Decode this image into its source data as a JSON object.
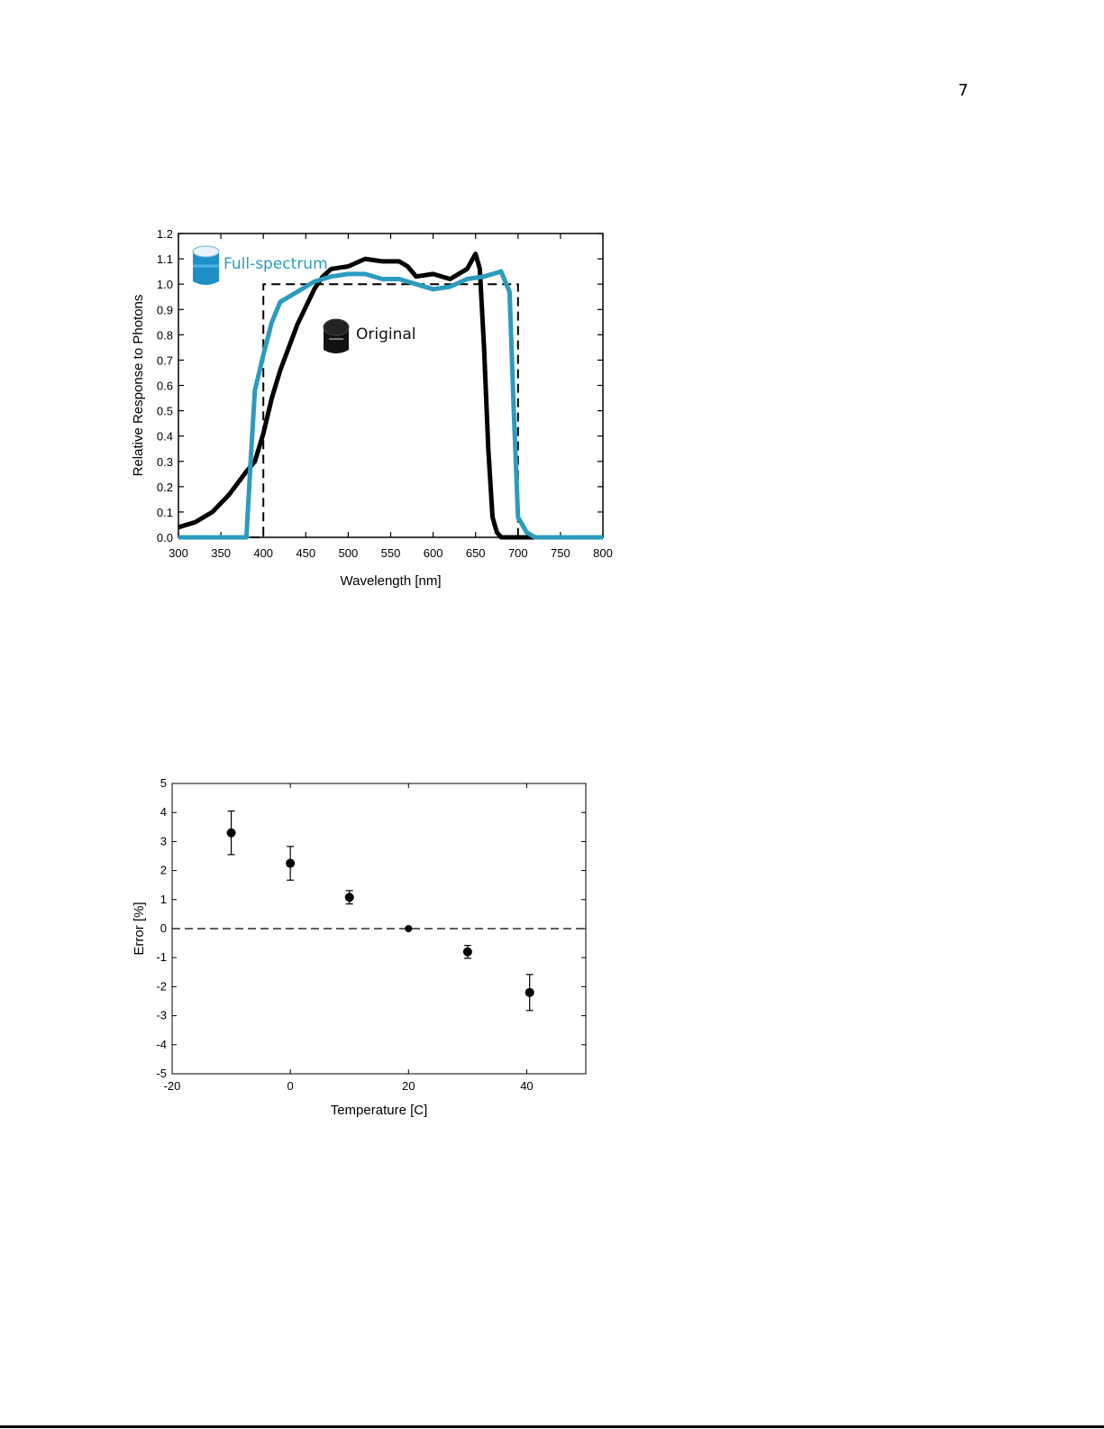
{
  "page_number": "7",
  "colors": {
    "full_spectrum": "#2b9bbe",
    "original": "#000000",
    "ideal": "#000000"
  },
  "chart_data": [
    {
      "type": "line",
      "title": "",
      "xlabel": "Wavelength [nm]",
      "ylabel": "Relative Response to Photons",
      "xlim": [
        300,
        800
      ],
      "ylim": [
        0,
        1.2
      ],
      "xticks": [
        "300",
        "350",
        "400",
        "450",
        "500",
        "550",
        "600",
        "650",
        "700",
        "750",
        "800"
      ],
      "yticks": [
        "0.0",
        "0.1",
        "0.2",
        "0.3",
        "0.4",
        "0.5",
        "0.6",
        "0.7",
        "0.8",
        "0.9",
        "1.0",
        "1.1",
        "1.2"
      ],
      "legend": [
        {
          "label": "Full-spectrum",
          "icon": "full-spectrum-sensor-icon"
        },
        {
          "label": "Original",
          "icon": "original-sensor-icon"
        }
      ],
      "grid": false,
      "series": [
        {
          "name": "Full-spectrum",
          "x": [
            300,
            380,
            385,
            390,
            400,
            410,
            420,
            440,
            460,
            480,
            500,
            520,
            540,
            560,
            580,
            600,
            620,
            640,
            660,
            680,
            690,
            695,
            700,
            710,
            720,
            800
          ],
          "y": [
            0,
            0,
            0.3,
            0.58,
            0.72,
            0.85,
            0.93,
            0.97,
            1.01,
            1.03,
            1.04,
            1.04,
            1.02,
            1.02,
            1.0,
            0.98,
            0.99,
            1.02,
            1.03,
            1.05,
            0.97,
            0.5,
            0.08,
            0.02,
            0,
            0
          ]
        },
        {
          "name": "Original",
          "x": [
            300,
            320,
            340,
            360,
            380,
            390,
            400,
            410,
            420,
            440,
            460,
            470,
            480,
            500,
            520,
            540,
            560,
            570,
            580,
            600,
            620,
            640,
            650,
            655,
            660,
            665,
            670,
            675,
            680,
            700,
            800
          ],
          "y": [
            0.04,
            0.06,
            0.1,
            0.17,
            0.26,
            0.3,
            0.41,
            0.55,
            0.66,
            0.84,
            0.98,
            1.03,
            1.06,
            1.07,
            1.1,
            1.09,
            1.09,
            1.07,
            1.03,
            1.04,
            1.02,
            1.06,
            1.12,
            1.06,
            0.75,
            0.35,
            0.08,
            0.02,
            0,
            0,
            0
          ]
        },
        {
          "name": "",
          "x": [
            300,
            400,
            400,
            700,
            700,
            800
          ],
          "y": [
            0,
            0,
            1.0,
            1.0,
            0,
            0
          ]
        }
      ]
    },
    {
      "type": "scatter",
      "title": "",
      "xlabel": "Temperature [C]",
      "ylabel": "Error [%]",
      "xlim": [
        -20,
        50
      ],
      "ylim": [
        -5,
        5
      ],
      "xticks": [
        "-20",
        "0",
        "20",
        "40"
      ],
      "yticks": [
        "-5",
        "-4",
        "-3",
        "-2",
        "-1",
        "0",
        "1",
        "2",
        "3",
        "4",
        "5"
      ],
      "grid": false,
      "reference_line": {
        "y": 0
      },
      "points": [
        {
          "x": -10,
          "y": 3.3,
          "err": 0.75
        },
        {
          "x": 0,
          "y": 2.25,
          "err": 0.58
        },
        {
          "x": 10,
          "y": 1.08,
          "err": 0.23
        },
        {
          "x": 20,
          "y": 0.0,
          "err": 0
        },
        {
          "x": 30,
          "y": -0.8,
          "err": 0.22
        },
        {
          "x": 40.5,
          "y": -2.2,
          "err": 0.62
        }
      ]
    }
  ]
}
